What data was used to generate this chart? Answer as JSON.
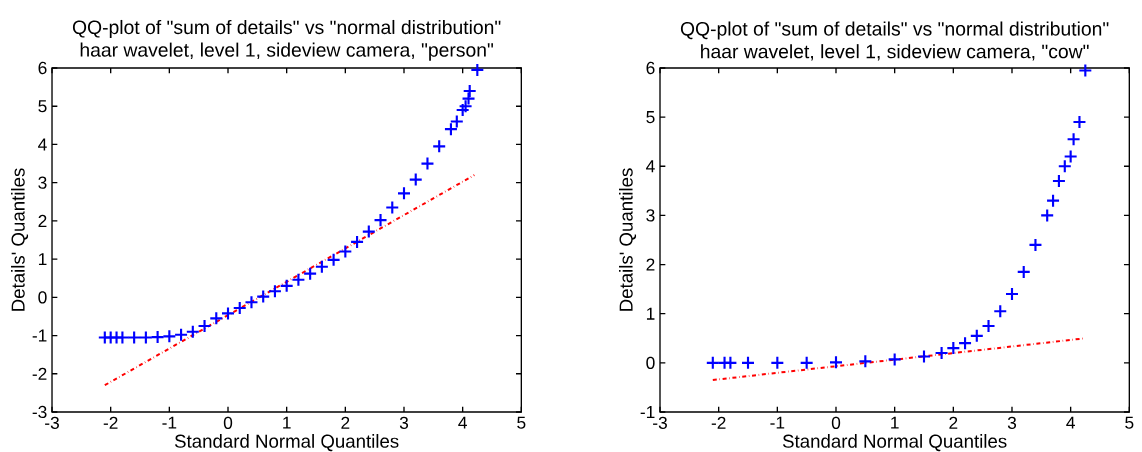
{
  "chart_data": [
    {
      "type": "scatter",
      "title": "QQ-plot of \"sum of details\" vs \"normal distribution\"",
      "subtitle": "haar wavelet, level 1, sideview camera, \"person\"",
      "xlabel": "Standard Normal Quantiles",
      "ylabel": "Details' Quantiles",
      "xlim": [
        -3,
        5
      ],
      "ylim": [
        -3,
        6
      ],
      "xticks": [
        -3,
        -2,
        -1,
        0,
        1,
        2,
        3,
        4,
        5
      ],
      "yticks": [
        -3,
        -2,
        -1,
        0,
        1,
        2,
        3,
        4,
        5,
        6
      ],
      "series": [
        {
          "color": "#0000ff",
          "marker": "cross",
          "x": [
            -2.1,
            -2.0,
            -1.9,
            -1.8,
            -1.6,
            -1.4,
            -1.2,
            -1.0,
            -0.8,
            -0.6,
            -0.4,
            -0.2,
            0,
            0.2,
            0.4,
            0.6,
            0.8,
            1.0,
            1.2,
            1.4,
            1.6,
            1.8,
            2.0,
            2.2,
            2.4,
            2.6,
            2.8,
            3.0,
            3.2,
            3.4,
            3.6,
            3.8,
            3.9,
            4.0,
            4.05,
            4.1,
            4.12,
            4.25
          ],
          "values": [
            -1.05,
            -1.05,
            -1.05,
            -1.05,
            -1.05,
            -1.05,
            -1.04,
            -1.02,
            -0.98,
            -0.9,
            -0.75,
            -0.55,
            -0.42,
            -0.28,
            -0.13,
            0.02,
            0.16,
            0.3,
            0.46,
            0.62,
            0.8,
            0.98,
            1.2,
            1.45,
            1.72,
            2.02,
            2.35,
            2.72,
            3.08,
            3.5,
            3.95,
            4.4,
            4.6,
            4.9,
            5.0,
            5.2,
            5.4,
            5.95
          ]
        },
        {
          "type": "line",
          "color": "#ff0000",
          "line_style": "dashed",
          "marker": "none",
          "x": [
            -2.1,
            4.2
          ],
          "values": [
            -2.3,
            3.2
          ]
        }
      ]
    },
    {
      "type": "scatter",
      "title": "QQ-plot of \"sum of details\" vs \"normal distribution\"",
      "subtitle": "haar wavelet, level 1, sideview camera, \"cow\"",
      "xlabel": "Standard Normal Quantiles",
      "ylabel": "Details' Quantiles",
      "xlim": [
        -3,
        5
      ],
      "ylim": [
        -1,
        6
      ],
      "xticks": [
        -3,
        -2,
        -1,
        0,
        1,
        2,
        3,
        4,
        5
      ],
      "yticks": [
        -1,
        0,
        1,
        2,
        3,
        4,
        5,
        6
      ],
      "series": [
        {
          "color": "#0000ff",
          "marker": "cross",
          "x": [
            -2.1,
            -1.9,
            -1.8,
            -1.5,
            -1.0,
            -0.5,
            0,
            0.5,
            1.0,
            1.5,
            1.8,
            2.0,
            2.2,
            2.4,
            2.6,
            2.8,
            3.0,
            3.2,
            3.4,
            3.6,
            3.7,
            3.8,
            3.9,
            4.0,
            4.05,
            4.15,
            4.25
          ],
          "values": [
            0,
            0,
            0,
            0,
            0,
            0,
            0.01,
            0.03,
            0.07,
            0.13,
            0.2,
            0.3,
            0.4,
            0.55,
            0.75,
            1.05,
            1.4,
            1.85,
            2.4,
            3.0,
            3.3,
            3.7,
            4.0,
            4.2,
            4.55,
            4.9,
            5.95
          ]
        },
        {
          "type": "line",
          "color": "#ff0000",
          "line_style": "dashed",
          "marker": "none",
          "x": [
            -2.1,
            4.25
          ],
          "values": [
            -0.35,
            0.5
          ]
        }
      ]
    }
  ]
}
